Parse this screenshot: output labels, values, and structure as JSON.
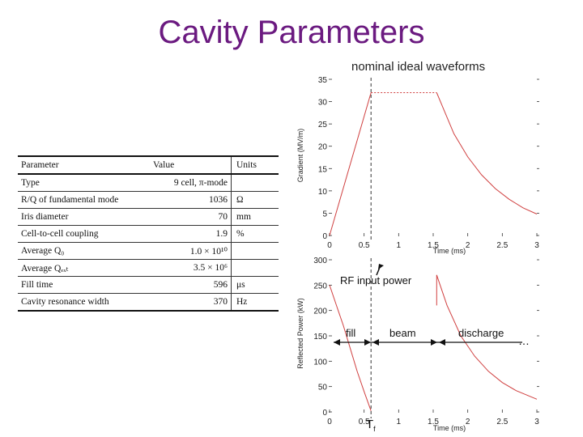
{
  "title": "Cavity Parameters",
  "subtitle": "nominal ideal waveforms",
  "table": {
    "headers": [
      "Parameter",
      "Value",
      "Units"
    ],
    "rows": [
      {
        "param": "Type",
        "value": "9 cell, π-mode",
        "units": ""
      },
      {
        "param": "R/Q of fundamental mode",
        "value": "1036",
        "units": "Ω"
      },
      {
        "param": "Iris diameter",
        "value": "70",
        "units": "mm"
      },
      {
        "param": "Cell-to-cell coupling",
        "value": "1.9",
        "units": "%"
      },
      {
        "param": "Average Q₀",
        "value": "1.0 × 10¹⁰",
        "units": ""
      },
      {
        "param": "Average Qₑₓₜ",
        "value": "3.5 × 10⁶",
        "units": ""
      },
      {
        "param": "Fill time",
        "value": "596",
        "units": "μs"
      },
      {
        "param": "Cavity resonance width",
        "value": "370",
        "units": "Hz"
      }
    ]
  },
  "chart_data": [
    {
      "type": "line",
      "xlabel": "Time (ms)",
      "ylabel": "Gradient (MV/m)",
      "xlim": [
        0,
        3
      ],
      "ylim": [
        0,
        35
      ],
      "xticks": [
        "0",
        "0.5",
        "1",
        "1.5",
        "2",
        "2.5",
        "3"
      ],
      "yticks": [
        "0",
        "5",
        "10",
        "15",
        "20",
        "25",
        "30",
        "35"
      ],
      "series": [
        {
          "x": [
            0,
            0.6
          ],
          "y": [
            0,
            32
          ]
        },
        {
          "x": [
            0.6,
            1.55
          ],
          "y": [
            32,
            32
          ]
        },
        {
          "x": [
            1.55,
            1.8,
            2.0,
            2.2,
            2.4,
            2.6,
            2.8,
            3.0
          ],
          "y": [
            32,
            22.8,
            17.6,
            13.6,
            10.5,
            8.1,
            6.2,
            4.8
          ]
        }
      ],
      "vline_x": 0.6
    },
    {
      "type": "line",
      "xlabel": "Time (ms)",
      "ylabel": "Reflected Power (kW)",
      "xlim": [
        0,
        3
      ],
      "ylim": [
        0,
        300
      ],
      "xticks": [
        "0",
        "0.5",
        "1",
        "1.5",
        "2",
        "2.5",
        "3"
      ],
      "yticks": [
        "0",
        "50",
        "100",
        "150",
        "200",
        "250",
        "300"
      ],
      "series": [
        {
          "x": [
            0,
            0.1,
            0.2,
            0.3,
            0.4,
            0.5,
            0.6
          ],
          "y": [
            250,
            210,
            170,
            125,
            80,
            40,
            2
          ]
        },
        {
          "x": [
            1.55,
            1.55
          ],
          "y": [
            210,
            270
          ]
        },
        {
          "x": [
            1.55,
            1.7,
            1.9,
            2.1,
            2.3,
            2.5,
            2.7,
            3.0
          ],
          "y": [
            270,
            210,
            150,
            110,
            80,
            58,
            42,
            25
          ]
        }
      ],
      "vline_x": 0.6
    }
  ],
  "annotations": {
    "rf_input": "RF input power",
    "fill": "fill",
    "beam": "beam",
    "discharge": "discharge",
    "tf": "T",
    "tf_sub": "f"
  },
  "colors": {
    "title": "#6b1a80",
    "curve": "#d04040",
    "axis": "#333333"
  }
}
